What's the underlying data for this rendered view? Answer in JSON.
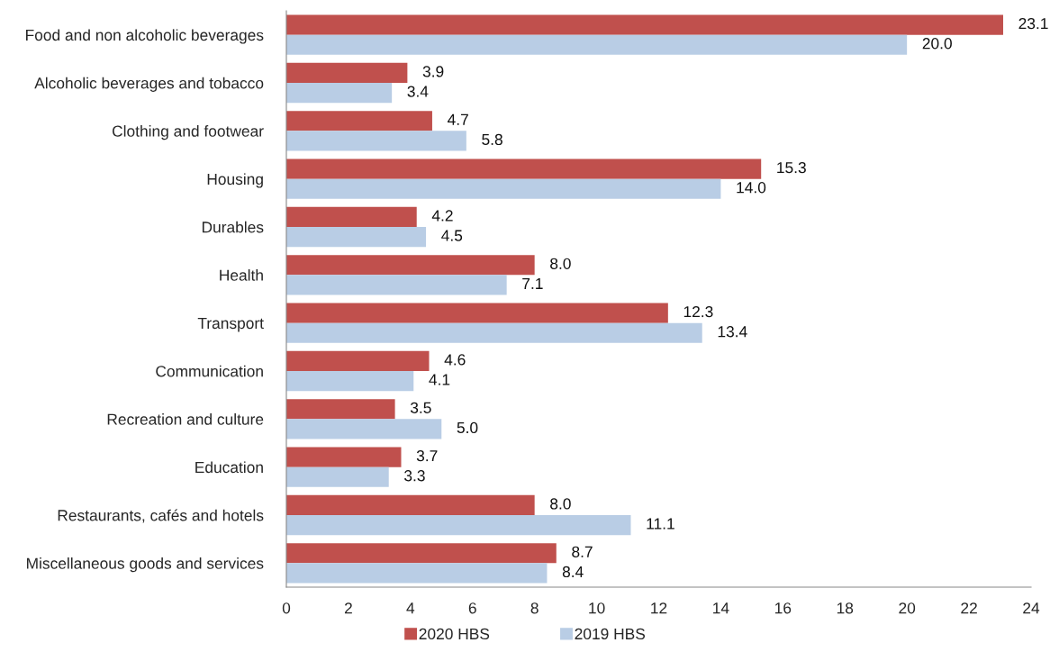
{
  "chart_data": {
    "type": "bar",
    "orientation": "horizontal",
    "categories": [
      "Food and non alcoholic beverages",
      "Alcoholic beverages and tobacco",
      "Clothing and footwear",
      "Housing",
      "Durables",
      "Health",
      "Transport",
      "Communication",
      "Recreation and culture",
      "Education",
      "Restaurants, cafés and hotels",
      "Miscellaneous goods and services"
    ],
    "series": [
      {
        "name": "2020 HBS",
        "color": "#c0504d",
        "values": [
          23.1,
          3.9,
          4.7,
          15.3,
          4.2,
          8.0,
          12.3,
          4.6,
          3.5,
          3.7,
          8.0,
          8.7
        ],
        "value_labels": [
          "23.1",
          "3.9",
          "4.7",
          "15.3",
          "4.2",
          "8.0",
          "12.3",
          "4.6",
          "3.5",
          "3.7",
          "8.0",
          "8.7"
        ]
      },
      {
        "name": "2019 HBS",
        "color": "#b9cde5",
        "values": [
          20.0,
          3.4,
          5.8,
          14.0,
          4.5,
          7.1,
          13.4,
          4.1,
          5.0,
          3.3,
          11.1,
          8.4
        ],
        "value_labels": [
          "20.0",
          "3.4",
          "5.8",
          "14.0",
          "4.5",
          "7.1",
          "13.4",
          "4.1",
          "5.0",
          "3.3",
          "11.1",
          "8.4"
        ]
      }
    ],
    "xlim": [
      0,
      24
    ],
    "xticks": [
      0,
      2,
      4,
      6,
      8,
      10,
      12,
      14,
      16,
      18,
      20,
      22,
      24
    ],
    "grid": false,
    "legend": "bottom"
  }
}
